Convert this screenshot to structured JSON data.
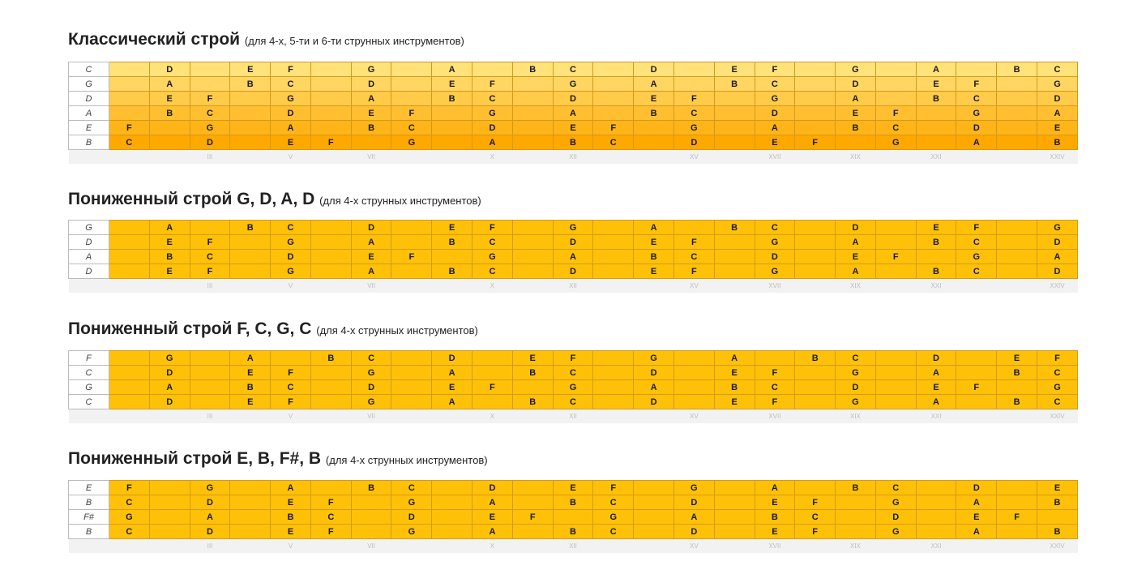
{
  "frets": [
    "",
    "",
    "III",
    "",
    "V",
    "",
    "VII",
    "",
    "",
    "X",
    "",
    "XII",
    "",
    "",
    "XV",
    "",
    "XVII",
    "",
    "XIX",
    "",
    "XXI",
    "",
    "",
    "XXIV"
  ],
  "sections": [
    {
      "title": "Классический строй",
      "subtitle": "(для 4-х, 5-ти и 6-ти струнных инструментов)",
      "gradient": [
        "#ffe27a",
        "#ffa800"
      ],
      "rows": [
        {
          "string": "C",
          "notes": [
            "",
            "D",
            "",
            "E",
            "F",
            "",
            "G",
            "",
            "A",
            "",
            "B",
            "C",
            "",
            "D",
            "",
            "E",
            "F",
            "",
            "G",
            "",
            "A",
            "",
            "B",
            "C"
          ]
        },
        {
          "string": "G",
          "notes": [
            "",
            "A",
            "",
            "B",
            "C",
            "",
            "D",
            "",
            "E",
            "F",
            "",
            "G",
            "",
            "A",
            "",
            "B",
            "C",
            "",
            "D",
            "",
            "E",
            "F",
            "",
            "G"
          ]
        },
        {
          "string": "D",
          "notes": [
            "",
            "E",
            "F",
            "",
            "G",
            "",
            "A",
            "",
            "B",
            "C",
            "",
            "D",
            "",
            "E",
            "F",
            "",
            "G",
            "",
            "A",
            "",
            "B",
            "C",
            "",
            "D"
          ]
        },
        {
          "string": "A",
          "notes": [
            "",
            "B",
            "C",
            "",
            "D",
            "",
            "E",
            "F",
            "",
            "G",
            "",
            "A",
            "",
            "B",
            "C",
            "",
            "D",
            "",
            "E",
            "F",
            "",
            "G",
            "",
            "A"
          ]
        },
        {
          "string": "E",
          "notes": [
            "F",
            "",
            "G",
            "",
            "A",
            "",
            "B",
            "C",
            "",
            "D",
            "",
            "E",
            "F",
            "",
            "G",
            "",
            "A",
            "",
            "B",
            "C",
            "",
            "D",
            "",
            "E"
          ]
        },
        {
          "string": "B",
          "notes": [
            "C",
            "",
            "D",
            "",
            "E",
            "F",
            "",
            "G",
            "",
            "A",
            "",
            "B",
            "C",
            "",
            "D",
            "",
            "E",
            "F",
            "",
            "G",
            "",
            "A",
            "",
            "B"
          ]
        }
      ]
    },
    {
      "title": "Пониженный строй G, D, A, D",
      "subtitle": "(для 4-х струнных инструментов)",
      "gradient": [
        "#ffc107",
        "#ffc107"
      ],
      "rows": [
        {
          "string": "G",
          "notes": [
            "",
            "A",
            "",
            "B",
            "C",
            "",
            "D",
            "",
            "E",
            "F",
            "",
            "G",
            "",
            "A",
            "",
            "B",
            "C",
            "",
            "D",
            "",
            "E",
            "F",
            "",
            "G"
          ]
        },
        {
          "string": "D",
          "notes": [
            "",
            "E",
            "F",
            "",
            "G",
            "",
            "A",
            "",
            "B",
            "C",
            "",
            "D",
            "",
            "E",
            "F",
            "",
            "G",
            "",
            "A",
            "",
            "B",
            "C",
            "",
            "D"
          ]
        },
        {
          "string": "A",
          "notes": [
            "",
            "B",
            "C",
            "",
            "D",
            "",
            "E",
            "F",
            "",
            "G",
            "",
            "A",
            "",
            "B",
            "C",
            "",
            "D",
            "",
            "E",
            "F",
            "",
            "G",
            "",
            "A"
          ]
        },
        {
          "string": "D",
          "notes": [
            "",
            "E",
            "F",
            "",
            "G",
            "",
            "A",
            "",
            "B",
            "C",
            "",
            "D",
            "",
            "E",
            "F",
            "",
            "G",
            "",
            "A",
            "",
            "B",
            "C",
            "",
            "D"
          ]
        }
      ]
    },
    {
      "title": "Пониженный строй F, C, G, C",
      "subtitle": "(для 4-х струнных инструментов)",
      "gradient": [
        "#ffc107",
        "#ffc107"
      ],
      "rows": [
        {
          "string": "F",
          "notes": [
            "",
            "G",
            "",
            "A",
            "",
            "B",
            "C",
            "",
            "D",
            "",
            "E",
            "F",
            "",
            "G",
            "",
            "A",
            "",
            "B",
            "C",
            "",
            "D",
            "",
            "E",
            "F"
          ]
        },
        {
          "string": "C",
          "notes": [
            "",
            "D",
            "",
            "E",
            "F",
            "",
            "G",
            "",
            "A",
            "",
            "B",
            "C",
            "",
            "D",
            "",
            "E",
            "F",
            "",
            "G",
            "",
            "A",
            "",
            "B",
            "C"
          ]
        },
        {
          "string": "G",
          "notes": [
            "",
            "A",
            "",
            "B",
            "C",
            "",
            "D",
            "",
            "E",
            "F",
            "",
            "G",
            "",
            "A",
            "",
            "B",
            "C",
            "",
            "D",
            "",
            "E",
            "F",
            "",
            "G"
          ]
        },
        {
          "string": "C",
          "notes": [
            "",
            "D",
            "",
            "E",
            "F",
            "",
            "G",
            "",
            "A",
            "",
            "B",
            "C",
            "",
            "D",
            "",
            "E",
            "F",
            "",
            "G",
            "",
            "A",
            "",
            "B",
            "C"
          ]
        }
      ]
    },
    {
      "title": "Пониженный строй E, B, F#, B",
      "subtitle": "(для 4-х струнных инструментов)",
      "gradient": [
        "#ffc107",
        "#ffc107"
      ],
      "rows": [
        {
          "string": "E",
          "notes": [
            "F",
            "",
            "G",
            "",
            "A",
            "",
            "B",
            "C",
            "",
            "D",
            "",
            "E",
            "F",
            "",
            "G",
            "",
            "A",
            "",
            "B",
            "C",
            "",
            "D",
            "",
            "E"
          ]
        },
        {
          "string": "B",
          "notes": [
            "C",
            "",
            "D",
            "",
            "E",
            "F",
            "",
            "G",
            "",
            "A",
            "",
            "B",
            "C",
            "",
            "D",
            "",
            "E",
            "F",
            "",
            "G",
            "",
            "A",
            "",
            "B"
          ]
        },
        {
          "string": "F#",
          "notes": [
            "G",
            "",
            "A",
            "",
            "B",
            "C",
            "",
            "D",
            "",
            "E",
            "F",
            "",
            "G",
            "",
            "A",
            "",
            "B",
            "C",
            "",
            "D",
            "",
            "E",
            "F",
            ""
          ]
        },
        {
          "string": "B",
          "notes": [
            "C",
            "",
            "D",
            "",
            "E",
            "F",
            "",
            "G",
            "",
            "A",
            "",
            "B",
            "C",
            "",
            "D",
            "",
            "E",
            "F",
            "",
            "G",
            "",
            "A",
            "",
            "B"
          ]
        }
      ]
    }
  ]
}
